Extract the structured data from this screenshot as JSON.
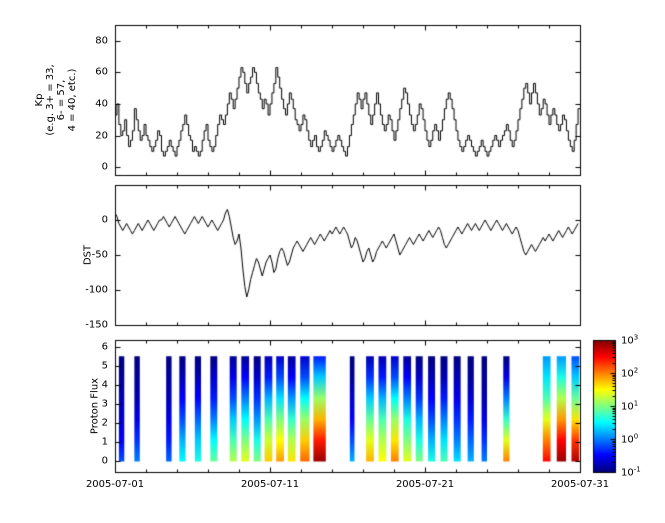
{
  "figure": {
    "background": "#ffffff",
    "line_color": "#000000"
  },
  "x_axis": {
    "tick_labels": [
      "2005-07-01",
      "2005-07-11",
      "2005-07-21",
      "2005-07-31"
    ],
    "tick_days": [
      0,
      10,
      20,
      30
    ],
    "minor_every_days": 2,
    "range_days": [
      0,
      30
    ]
  },
  "colorbar": {
    "orientation": "vertical",
    "colormap": "jet",
    "log_range": [
      -1,
      3
    ],
    "labels": [
      {
        "base": "10",
        "exp": "3",
        "value": 3
      },
      {
        "base": "10",
        "exp": "2",
        "value": 2
      },
      {
        "base": "10",
        "exp": "1",
        "value": 1
      },
      {
        "base": "10",
        "exp": "0",
        "value": 0
      },
      {
        "base": "10",
        "exp": "-1",
        "value": -1
      }
    ]
  },
  "chart_data": [
    {
      "type": "line",
      "subtype": "step",
      "name": "kp-index",
      "ylabel_lines": [
        "Kp",
        "(e.g. 3+ = 33,",
        "6- = 57,",
        "4 = 40, etc.)"
      ],
      "ylim": [
        -5,
        90
      ],
      "yticks": [
        0,
        20,
        40,
        60,
        80
      ],
      "x0_days": 0,
      "dt_days": 0.125,
      "values": [
        33,
        40,
        27,
        20,
        23,
        30,
        20,
        13,
        17,
        23,
        37,
        30,
        23,
        17,
        20,
        27,
        20,
        17,
        13,
        10,
        13,
        17,
        23,
        20,
        10,
        7,
        10,
        13,
        17,
        13,
        10,
        7,
        13,
        17,
        23,
        27,
        33,
        27,
        20,
        17,
        10,
        13,
        10,
        7,
        10,
        17,
        23,
        27,
        17,
        13,
        10,
        13,
        20,
        27,
        33,
        30,
        27,
        33,
        40,
        47,
        43,
        37,
        43,
        50,
        57,
        63,
        60,
        53,
        47,
        53,
        57,
        63,
        60,
        53,
        47,
        43,
        37,
        43,
        40,
        33,
        40,
        47,
        53,
        63,
        57,
        50,
        43,
        37,
        33,
        40,
        47,
        43,
        37,
        30,
        27,
        23,
        27,
        33,
        30,
        23,
        17,
        13,
        17,
        20,
        13,
        10,
        13,
        17,
        23,
        20,
        17,
        13,
        10,
        13,
        17,
        20,
        17,
        13,
        10,
        7,
        13,
        20,
        27,
        33,
        40,
        47,
        43,
        37,
        43,
        47,
        40,
        33,
        27,
        33,
        40,
        47,
        40,
        33,
        27,
        23,
        27,
        33,
        30,
        23,
        17,
        23,
        30,
        37,
        43,
        50,
        47,
        40,
        33,
        27,
        23,
        27,
        33,
        40,
        37,
        30,
        23,
        17,
        13,
        17,
        23,
        27,
        23,
        17,
        23,
        30,
        37,
        43,
        47,
        43,
        37,
        30,
        23,
        17,
        13,
        10,
        13,
        17,
        20,
        17,
        13,
        10,
        7,
        10,
        13,
        17,
        13,
        10,
        7,
        10,
        13,
        17,
        20,
        17,
        13,
        17,
        20,
        23,
        27,
        23,
        17,
        13,
        17,
        23,
        30,
        37,
        43,
        50,
        53,
        47,
        40,
        47,
        53,
        47,
        40,
        33,
        37,
        43,
        40,
        33,
        27,
        33,
        37,
        33,
        27,
        23,
        27,
        33,
        30,
        23,
        17,
        13,
        10,
        17,
        27,
        37
      ]
    },
    {
      "type": "line",
      "name": "dst-index",
      "ylabel": "DST",
      "ylim": [
        -150,
        50
      ],
      "yticks": [
        0,
        -50,
        -100,
        -150
      ],
      "x0_days": 0,
      "dt_days": 0.125,
      "values": [
        10,
        5,
        -5,
        -10,
        -15,
        -10,
        -5,
        -10,
        -15,
        -20,
        -15,
        -10,
        -5,
        -10,
        -15,
        -10,
        -5,
        0,
        -5,
        -10,
        -15,
        -10,
        -5,
        0,
        0,
        5,
        0,
        -5,
        -10,
        -5,
        0,
        5,
        0,
        -5,
        -10,
        -15,
        -20,
        -15,
        -10,
        -5,
        0,
        5,
        0,
        -5,
        0,
        5,
        0,
        -5,
        -10,
        -5,
        0,
        -5,
        -10,
        -15,
        -10,
        -5,
        0,
        10,
        15,
        5,
        -10,
        -25,
        -35,
        -30,
        -20,
        -40,
        -70,
        -95,
        -110,
        -100,
        -85,
        -75,
        -65,
        -55,
        -60,
        -70,
        -80,
        -70,
        -60,
        -55,
        -50,
        -60,
        -75,
        -70,
        -55,
        -45,
        -40,
        -45,
        -55,
        -65,
        -60,
        -50,
        -40,
        -35,
        -30,
        -35,
        -40,
        -45,
        -40,
        -35,
        -30,
        -25,
        -30,
        -35,
        -30,
        -25,
        -20,
        -25,
        -30,
        -25,
        -20,
        -15,
        -20,
        -15,
        -10,
        -15,
        -20,
        -15,
        -10,
        -15,
        -20,
        -30,
        -40,
        -35,
        -25,
        -30,
        -40,
        -50,
        -60,
        -55,
        -45,
        -40,
        -50,
        -60,
        -55,
        -45,
        -40,
        -35,
        -30,
        -35,
        -40,
        -35,
        -30,
        -25,
        -20,
        -30,
        -40,
        -50,
        -45,
        -40,
        -35,
        -30,
        -25,
        -30,
        -35,
        -30,
        -25,
        -20,
        -25,
        -30,
        -25,
        -20,
        -15,
        -20,
        -25,
        -20,
        -15,
        -10,
        -15,
        -25,
        -35,
        -40,
        -35,
        -30,
        -25,
        -20,
        -15,
        -10,
        -15,
        -20,
        -15,
        -10,
        -5,
        -10,
        -15,
        -10,
        -5,
        -10,
        -15,
        -10,
        -5,
        0,
        -5,
        -10,
        -15,
        -10,
        -5,
        0,
        -5,
        -10,
        -15,
        -10,
        -5,
        -10,
        -15,
        -20,
        -15,
        -10,
        -15,
        -25,
        -35,
        -45,
        -50,
        -45,
        -40,
        -35,
        -40,
        -45,
        -40,
        -35,
        -30,
        -25,
        -30,
        -25,
        -20,
        -25,
        -30,
        -25,
        -20,
        -15,
        -20,
        -25,
        -20,
        -15,
        -10,
        -15,
        -20,
        -15,
        -10,
        -5
      ]
    },
    {
      "type": "heatmap",
      "name": "proton-flux",
      "ylabel": "Proton Flux",
      "ylim": [
        -0.55,
        6.35
      ],
      "yticks": [
        0,
        1,
        2,
        3,
        4,
        5,
        6
      ],
      "bar_span": [
        0,
        5.5
      ],
      "value_log_range": [
        -1,
        3
      ],
      "colormap": "jet",
      "bars": [
        {
          "x": 0.25,
          "w": 0.35,
          "levels": [
            -0.2,
            -0.5,
            -0.7,
            -0.8,
            -0.9,
            -1
          ]
        },
        {
          "x": 1.25,
          "w": 0.35,
          "levels": [
            0.0,
            -0.3,
            -0.6,
            -0.8,
            -0.9,
            -1
          ]
        },
        {
          "x": 3.3,
          "w": 0.35,
          "levels": [
            -0.1,
            -0.4,
            -0.6,
            -0.8,
            -0.9,
            -1
          ]
        },
        {
          "x": 4.15,
          "w": 0.4,
          "levels": [
            0.5,
            0.2,
            -0.2,
            -0.5,
            -0.8,
            -1
          ]
        },
        {
          "x": 5.15,
          "w": 0.4,
          "levels": [
            0.6,
            0.3,
            -0.1,
            -0.5,
            -0.8,
            -1
          ]
        },
        {
          "x": 6.15,
          "w": 0.45,
          "levels": [
            0.9,
            0.5,
            0.0,
            -0.4,
            -0.7,
            -1
          ]
        },
        {
          "x": 7.4,
          "w": 0.45,
          "levels": [
            1.2,
            0.8,
            0.3,
            -0.2,
            -0.6,
            -0.9
          ]
        },
        {
          "x": 8.15,
          "w": 0.5,
          "levels": [
            1.4,
            1.0,
            0.5,
            0.0,
            -0.5,
            -0.9
          ]
        },
        {
          "x": 8.95,
          "w": 0.45,
          "levels": [
            1.0,
            0.6,
            0.1,
            -0.3,
            -0.7,
            -1
          ]
        },
        {
          "x": 9.65,
          "w": 0.5,
          "levels": [
            1.7,
            1.3,
            0.8,
            0.2,
            -0.4,
            -0.8
          ]
        },
        {
          "x": 10.4,
          "w": 0.5,
          "levels": [
            1.9,
            1.5,
            1.0,
            0.4,
            -0.2,
            -0.7
          ]
        },
        {
          "x": 11.15,
          "w": 0.5,
          "levels": [
            1.6,
            1.2,
            0.7,
            0.1,
            -0.5,
            -0.9
          ]
        },
        {
          "x": 11.95,
          "w": 0.6,
          "levels": [
            2.1,
            1.7,
            1.1,
            0.5,
            -0.2,
            -0.7
          ]
        },
        {
          "x": 12.8,
          "w": 0.8,
          "levels": [
            2.9,
            2.4,
            1.8,
            1.1,
            0.3,
            -0.4
          ]
        },
        {
          "x": 15.15,
          "w": 0.3,
          "levels": [
            0.2,
            -0.2,
            -0.5,
            -0.7,
            -0.9,
            -1
          ]
        },
        {
          "x": 16.2,
          "w": 0.5,
          "levels": [
            1.8,
            1.4,
            0.9,
            0.3,
            -0.3,
            -0.8
          ]
        },
        {
          "x": 17.0,
          "w": 0.5,
          "levels": [
            1.5,
            1.2,
            0.8,
            0.2,
            -0.4,
            -0.8
          ]
        },
        {
          "x": 17.8,
          "w": 0.5,
          "levels": [
            2.0,
            1.6,
            1.1,
            0.5,
            -0.2,
            -0.7
          ]
        },
        {
          "x": 18.6,
          "w": 0.5,
          "levels": [
            1.4,
            1.0,
            0.6,
            0.0,
            -0.5,
            -0.9
          ]
        },
        {
          "x": 19.4,
          "w": 0.45,
          "levels": [
            1.0,
            0.6,
            0.2,
            -0.3,
            -0.7,
            -1
          ]
        },
        {
          "x": 20.2,
          "w": 0.45,
          "levels": [
            0.6,
            0.2,
            -0.2,
            -0.5,
            -0.8,
            -1
          ]
        },
        {
          "x": 21.0,
          "w": 0.45,
          "levels": [
            0.8,
            0.4,
            0.0,
            -0.4,
            -0.8,
            -1
          ]
        },
        {
          "x": 21.85,
          "w": 0.45,
          "levels": [
            0.4,
            0.0,
            -0.3,
            -0.6,
            -0.8,
            -1
          ]
        },
        {
          "x": 22.75,
          "w": 0.4,
          "levels": [
            0.2,
            -0.1,
            -0.4,
            -0.7,
            -0.9,
            -1
          ]
        },
        {
          "x": 23.65,
          "w": 0.35,
          "levels": [
            0.0,
            -0.3,
            -0.6,
            -0.8,
            -0.9,
            -1
          ]
        },
        {
          "x": 25.05,
          "w": 0.4,
          "levels": [
            2.0,
            1.4,
            0.7,
            0.0,
            -0.6,
            -1
          ]
        },
        {
          "x": 27.6,
          "w": 0.5,
          "levels": [
            2.5,
            2.0,
            1.4,
            0.8,
            0.4,
            0.1
          ]
        },
        {
          "x": 28.5,
          "w": 0.6,
          "levels": [
            2.9,
            2.5,
            1.9,
            1.2,
            0.6,
            0.1
          ]
        },
        {
          "x": 29.45,
          "w": 0.5,
          "levels": [
            2.8,
            2.3,
            1.6,
            0.9,
            0.3,
            -0.2
          ]
        }
      ]
    }
  ]
}
